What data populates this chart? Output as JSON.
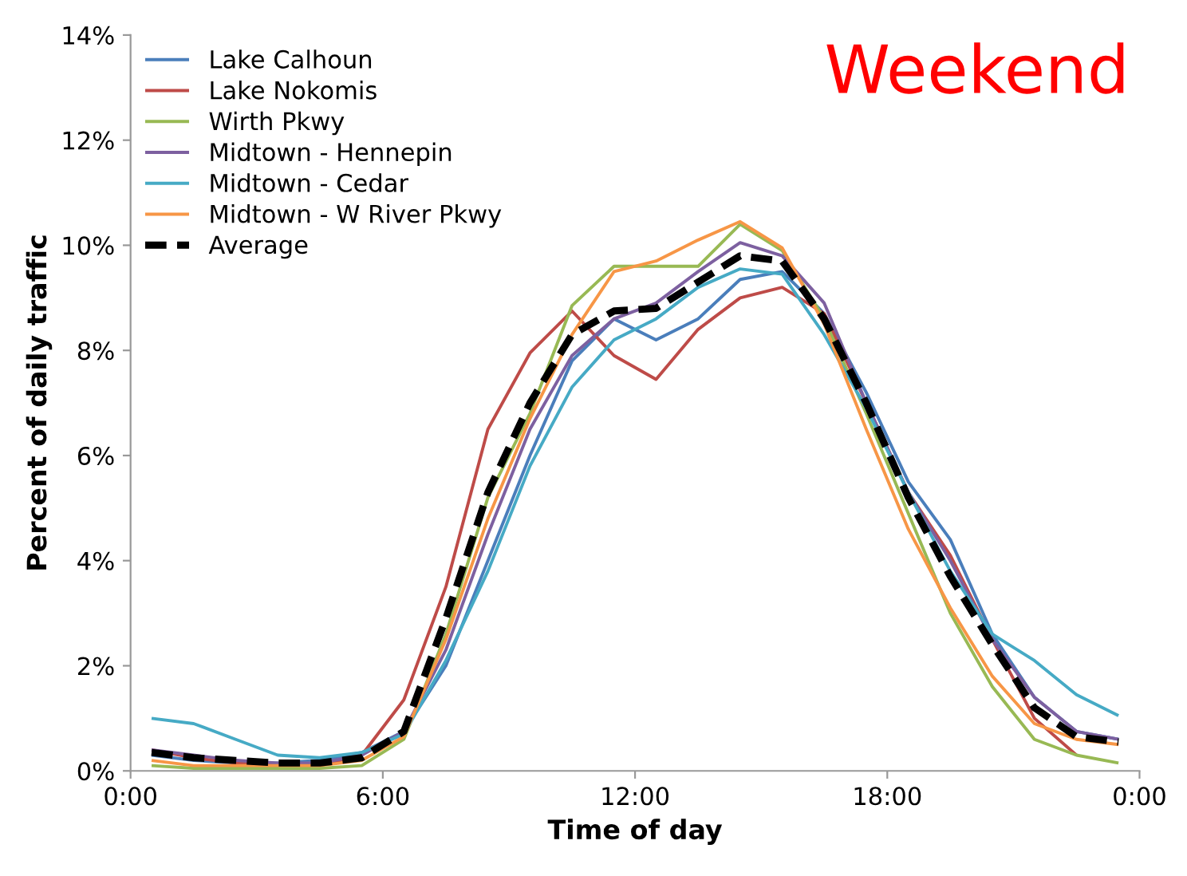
{
  "chart_data": {
    "type": "line",
    "title": "Weekend",
    "xlabel": "Time of day",
    "ylabel": "Percent of daily traffic",
    "x": [
      0.5,
      1.5,
      2.5,
      3.5,
      4.5,
      5.5,
      6.5,
      7.5,
      8.5,
      9.5,
      10.5,
      11.5,
      12.5,
      13.5,
      14.5,
      15.5,
      16.5,
      17.5,
      18.5,
      19.5,
      20.5,
      21.5,
      22.5,
      23.5
    ],
    "series": [
      {
        "name": "Lake Calhoun",
        "color": "#4a7ebb",
        "line_style": "solid",
        "values": [
          0.3,
          0.2,
          0.15,
          0.15,
          0.2,
          0.35,
          0.75,
          2.0,
          4.0,
          6.0,
          7.8,
          8.6,
          8.2,
          8.6,
          9.35,
          9.5,
          8.7,
          7.2,
          5.5,
          4.4,
          2.6,
          1.4,
          0.75,
          0.6
        ]
      },
      {
        "name": "Lake Nokomis",
        "color": "#be4b48",
        "line_style": "solid",
        "values": [
          0.4,
          0.25,
          0.15,
          0.1,
          0.1,
          0.3,
          1.35,
          3.5,
          6.5,
          7.95,
          8.75,
          7.9,
          7.45,
          8.4,
          9.0,
          9.2,
          8.7,
          7.0,
          5.3,
          4.1,
          2.5,
          1.0,
          0.3,
          null
        ]
      },
      {
        "name": "Wirth Pkwy",
        "color": "#98b954",
        "line_style": "solid",
        "values": [
          0.1,
          0.05,
          0.05,
          0.05,
          0.05,
          0.1,
          0.6,
          2.6,
          5.2,
          6.8,
          8.85,
          9.6,
          9.6,
          9.6,
          10.4,
          9.9,
          8.6,
          6.8,
          4.9,
          3.0,
          1.6,
          0.6,
          0.3,
          0.15
        ]
      },
      {
        "name": "Midtown - Hennepin",
        "color": "#7d60a0",
        "line_style": "solid",
        "values": [
          0.4,
          0.3,
          0.2,
          0.15,
          0.15,
          0.3,
          0.75,
          2.3,
          4.5,
          6.5,
          7.9,
          8.6,
          8.9,
          9.5,
          10.05,
          9.8,
          8.9,
          7.0,
          5.3,
          4.0,
          2.5,
          1.4,
          0.75,
          0.6
        ]
      },
      {
        "name": "Midtown - Cedar",
        "color": "#46aac5",
        "line_style": "solid",
        "values": [
          1.0,
          0.9,
          0.6,
          0.3,
          0.25,
          0.35,
          0.7,
          2.1,
          3.8,
          5.8,
          7.3,
          8.2,
          8.6,
          9.2,
          9.55,
          9.45,
          8.3,
          6.9,
          5.3,
          3.8,
          2.6,
          2.1,
          1.45,
          1.05
        ]
      },
      {
        "name": "Midtown - W River Pkwy",
        "color": "#f79646",
        "line_style": "solid",
        "values": [
          0.2,
          0.1,
          0.1,
          0.1,
          0.1,
          0.2,
          0.65,
          2.5,
          4.8,
          6.7,
          8.3,
          9.5,
          9.7,
          10.1,
          10.45,
          9.95,
          8.5,
          6.5,
          4.6,
          3.1,
          1.8,
          0.9,
          0.6,
          0.5
        ]
      },
      {
        "name": "Average",
        "color": "#000000",
        "line_style": "dashed",
        "values": [
          0.35,
          0.25,
          0.2,
          0.15,
          0.15,
          0.25,
          0.75,
          2.9,
          5.3,
          7.0,
          8.3,
          8.75,
          8.8,
          9.3,
          9.8,
          9.7,
          8.6,
          7.0,
          5.2,
          3.7,
          2.4,
          1.2,
          0.65,
          0.55
        ]
      }
    ],
    "xlim": [
      0,
      24
    ],
    "xticks": [
      {
        "value": 0,
        "label": "0:00"
      },
      {
        "value": 6,
        "label": "6:00"
      },
      {
        "value": 12,
        "label": "12:00"
      },
      {
        "value": 18,
        "label": "18:00"
      },
      {
        "value": 24,
        "label": "0:00"
      }
    ],
    "ylim": [
      0,
      14
    ],
    "yticks": [
      {
        "value": 0,
        "label": "0%"
      },
      {
        "value": 2,
        "label": "2%"
      },
      {
        "value": 4,
        "label": "4%"
      },
      {
        "value": 6,
        "label": "6%"
      },
      {
        "value": 8,
        "label": "8%"
      },
      {
        "value": 10,
        "label": "10%"
      },
      {
        "value": 12,
        "label": "12%"
      },
      {
        "value": 14,
        "label": "14%"
      }
    ],
    "grid": false,
    "legend": "top left",
    "marker": "none"
  }
}
